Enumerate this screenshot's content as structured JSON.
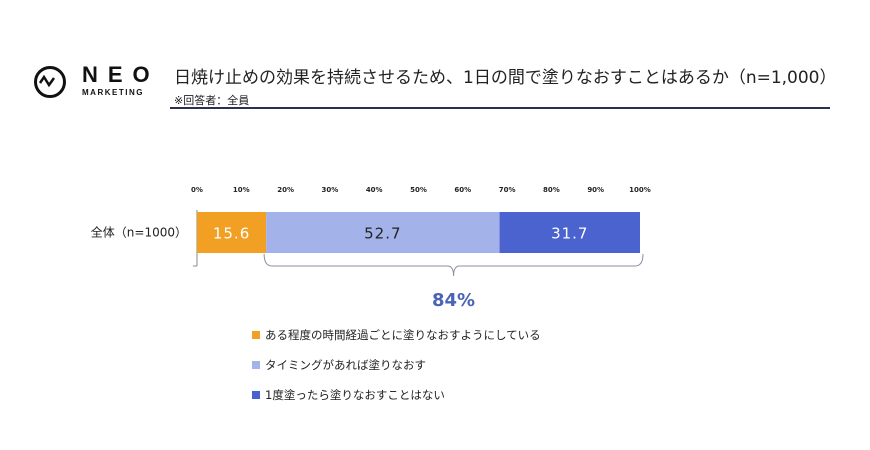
{
  "logo": {
    "name": "NEO",
    "sub": "MARKETING"
  },
  "header": {
    "title": "日焼け止めの効果を持続させるため、1日の間で塗りなおすことはあるか（n=1,000）",
    "subtitle": "※回答者：全員"
  },
  "chart_data": {
    "type": "bar",
    "orientation": "horizontal",
    "stacked": true,
    "categories": [
      "全体（n=1000）"
    ],
    "xlim": [
      0,
      100
    ],
    "ticks": [
      "0%",
      "10%",
      "20%",
      "30%",
      "40%",
      "50%",
      "60%",
      "70%",
      "80%",
      "90%",
      "100%"
    ],
    "series": [
      {
        "name": "ある程度の時間経過ごとに塗りなおすようにしている",
        "values": [
          15.6
        ],
        "color": "#F2A024",
        "label_color": "#ffffff"
      },
      {
        "name": "タイミングがあれば塗りなおす",
        "values": [
          52.7
        ],
        "color": "#A3B2E8",
        "label_color": "#222222"
      },
      {
        "name": "1度塗ったら塗りなおすことはない",
        "values": [
          31.7
        ],
        "color": "#4A63CF",
        "label_color": "#ffffff"
      }
    ],
    "annotation": {
      "text": "84%",
      "range": [
        15.6,
        100
      ],
      "color": "#4A63B5"
    },
    "legend_placement": "bottom"
  }
}
